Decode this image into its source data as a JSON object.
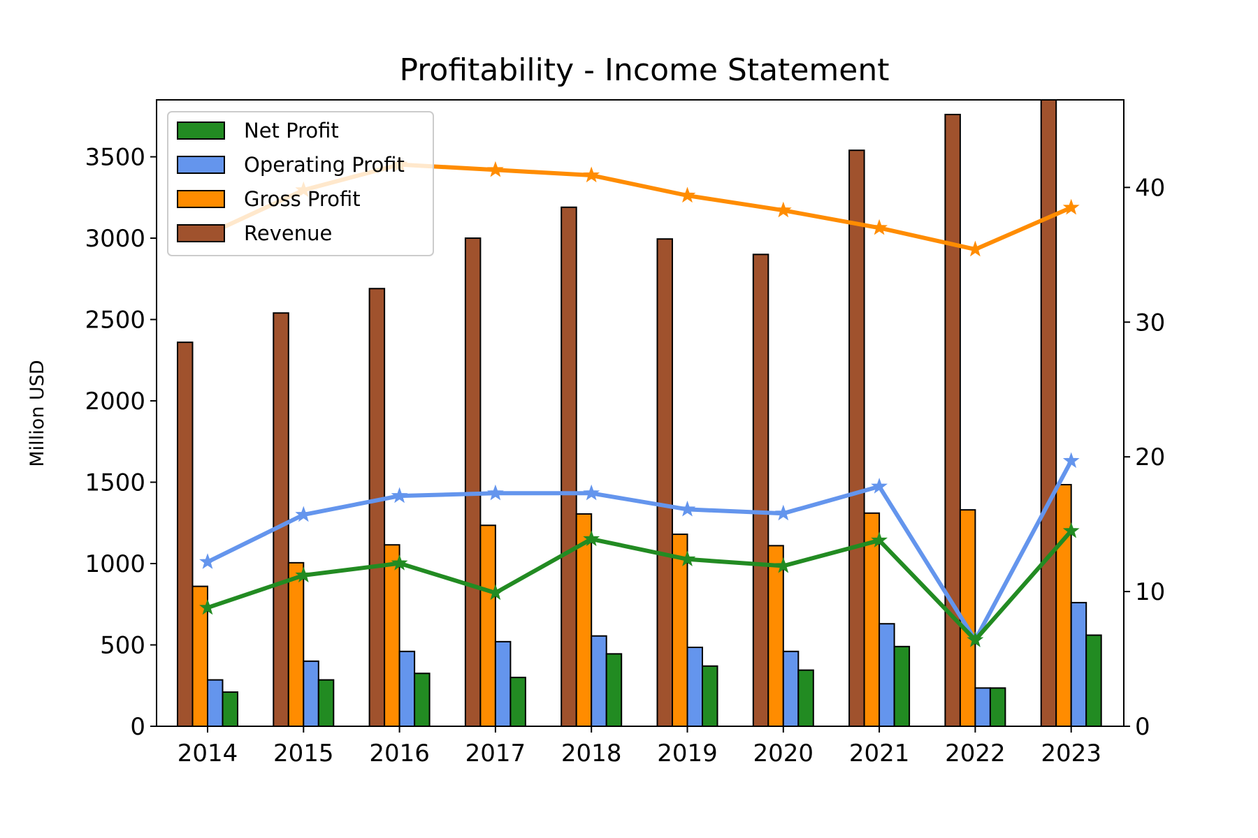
{
  "chart_data": {
    "type": "bar",
    "title": "Profitability - Income Statement",
    "ylabel": "Million USD",
    "y2label": "",
    "categories": [
      "2014",
      "2015",
      "2016",
      "2017",
      "2018",
      "2019",
      "2020",
      "2021",
      "2022",
      "2023"
    ],
    "ylim": [
      0,
      3850
    ],
    "y2lim": [
      0,
      46.5
    ],
    "yticks": [
      "0",
      "500",
      "1000",
      "1500",
      "2000",
      "2500",
      "3000",
      "3500"
    ],
    "y2ticks": [
      "0",
      "10",
      "20",
      "30",
      "40"
    ],
    "legend_position": "top-left",
    "grid": false,
    "bar_series": [
      {
        "name": "Revenue",
        "color": "#a0522d",
        "values": [
          2360,
          2540,
          2690,
          3000,
          3190,
          2995,
          2900,
          3540,
          3760,
          3850
        ]
      },
      {
        "name": "Gross Profit",
        "color": "#ff8c00",
        "values": [
          860,
          1005,
          1115,
          1235,
          1305,
          1180,
          1110,
          1310,
          1330,
          1485
        ]
      },
      {
        "name": "Operating Profit",
        "color": "#6495ed",
        "values": [
          285,
          400,
          460,
          520,
          555,
          485,
          460,
          630,
          235,
          760
        ]
      },
      {
        "name": "Net Profit",
        "color": "#228b22",
        "values": [
          210,
          285,
          325,
          300,
          445,
          370,
          345,
          490,
          235,
          560
        ]
      }
    ],
    "line_series": [
      {
        "series": "Gross Profit",
        "color": "#ff8c00",
        "values": [
          36.5,
          39.8,
          41.7,
          41.3,
          40.9,
          39.4,
          38.3,
          37.0,
          35.4,
          38.5
        ]
      },
      {
        "series": "Operating Profit",
        "color": "#6495ed",
        "values": [
          12.2,
          15.7,
          17.1,
          17.3,
          17.3,
          16.1,
          15.8,
          17.8,
          6.4,
          19.7
        ]
      },
      {
        "series": "Net Profit",
        "color": "#228b22",
        "values": [
          8.8,
          11.2,
          12.1,
          9.9,
          13.9,
          12.4,
          11.9,
          13.8,
          6.4,
          14.5
        ]
      }
    ],
    "legend": [
      "Net Profit",
      "Operating Profit",
      "Gross Profit",
      "Revenue"
    ]
  }
}
